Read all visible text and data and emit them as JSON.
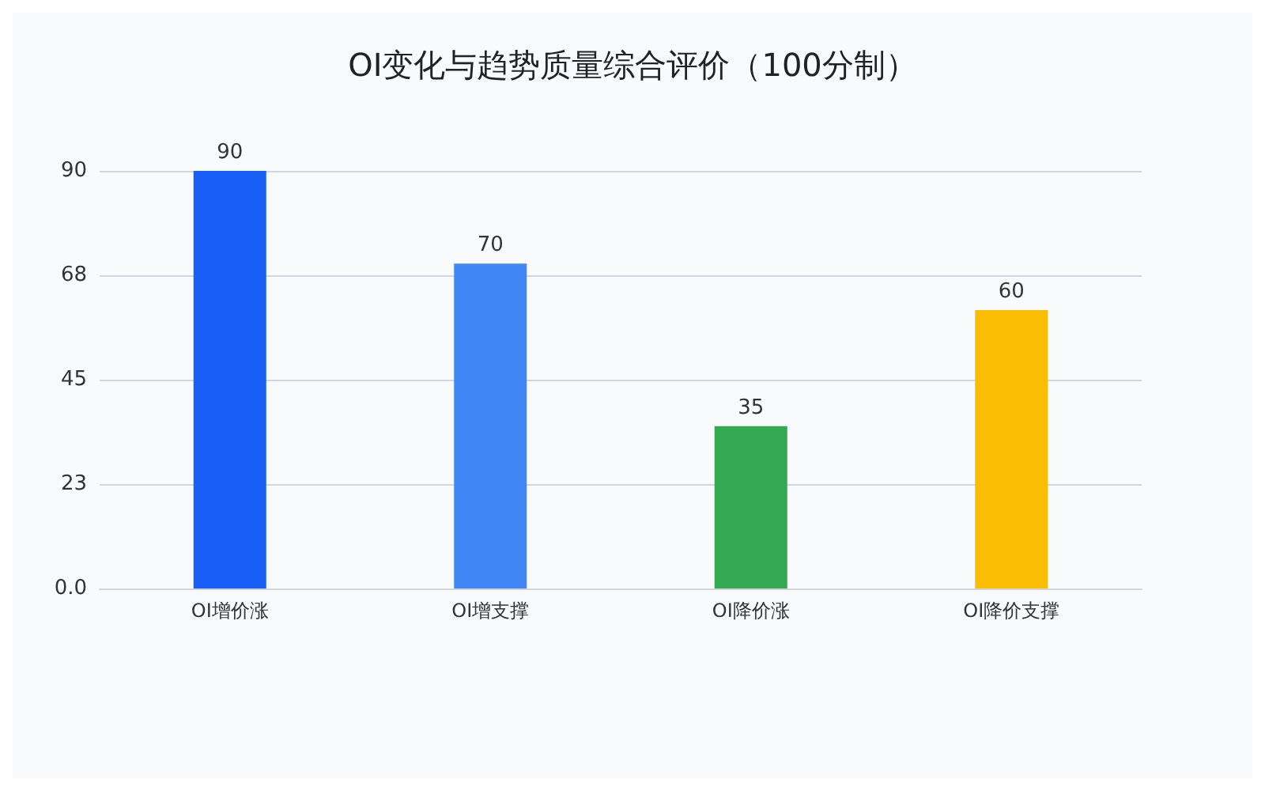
{
  "chart_data": {
    "type": "bar",
    "title": "OI变化与趋势质量综合评价（100分制）",
    "categories": [
      "OI增价涨",
      "OI增支撑",
      "OI降价涨",
      "OI降价支撑"
    ],
    "values": [
      90,
      70,
      35,
      60
    ],
    "colors": [
      "#1a5ff5",
      "#4287f5",
      "#34a853",
      "#fbbc04"
    ],
    "ylim": [
      0,
      90
    ],
    "yticks": [
      {
        "value": 0,
        "label": "0.0"
      },
      {
        "value": 22.5,
        "label": "23"
      },
      {
        "value": 45,
        "label": "45"
      },
      {
        "value": 67.5,
        "label": "68"
      },
      {
        "value": 90,
        "label": "90"
      }
    ],
    "grid": "y",
    "data_labels": true
  }
}
